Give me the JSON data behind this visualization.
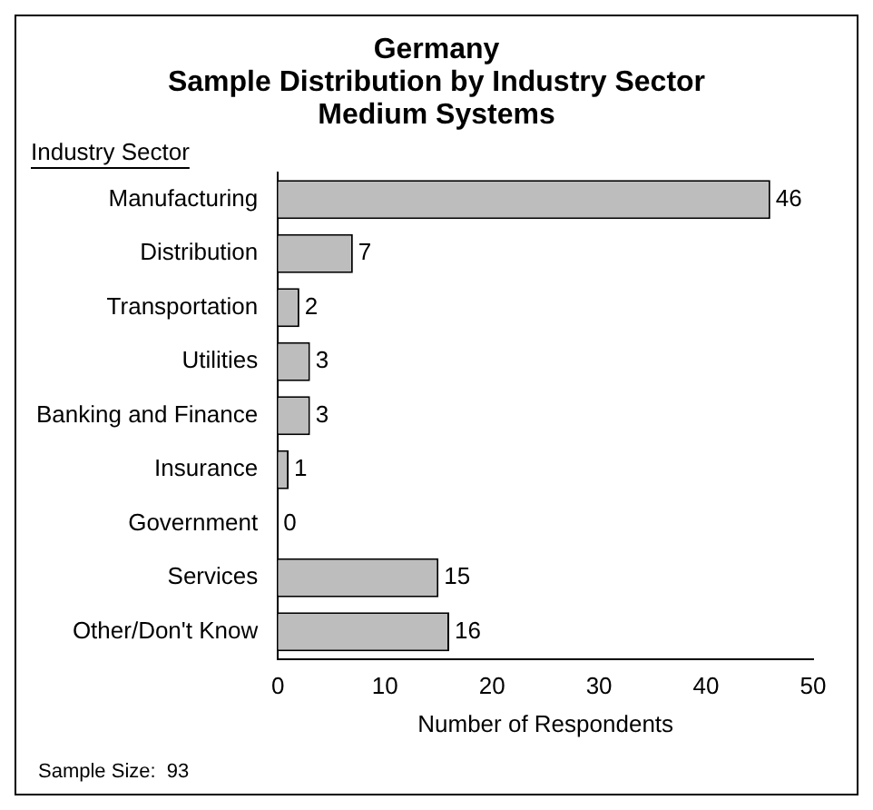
{
  "chart_data": {
    "type": "bar",
    "orientation": "horizontal",
    "title": "Germany",
    "subtitle": "Sample Distribution by Industry Sector Medium Systems",
    "ylabel": "Industry Sector",
    "xlabel": "Number of Respondents",
    "categories": [
      "Manufacturing",
      "Distribution",
      "Transportation",
      "Utilities",
      "Banking and Finance",
      "Insurance",
      "Government",
      "Services",
      "Other/Don't Know"
    ],
    "values": [
      46,
      7,
      2,
      3,
      3,
      1,
      0,
      15,
      16
    ],
    "color": "#bdbdbd",
    "xlim": [
      0,
      50
    ],
    "xticks": [
      0,
      10,
      20,
      30,
      40,
      50
    ],
    "grid": false,
    "legend": false,
    "data_labels": true,
    "annotations": [
      "Sample Size:  93"
    ]
  }
}
